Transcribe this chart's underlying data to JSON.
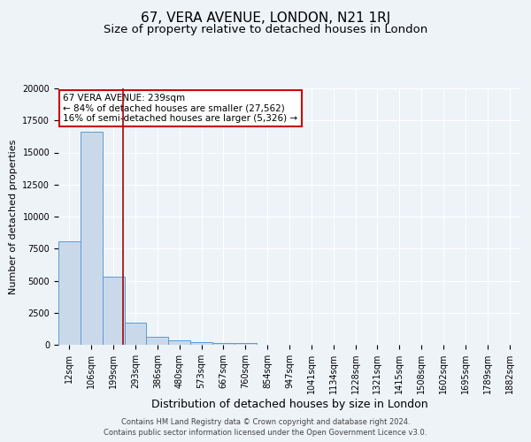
{
  "title": "67, VERA AVENUE, LONDON, N21 1RJ",
  "subtitle": "Size of property relative to detached houses in London",
  "xlabel": "Distribution of detached houses by size in London",
  "ylabel": "Number of detached properties",
  "footer_line1": "Contains HM Land Registry data © Crown copyright and database right 2024.",
  "footer_line2": "Contains public sector information licensed under the Open Government Licence v3.0.",
  "annotation_line1": "67 VERA AVENUE: 239sqm",
  "annotation_line2": "← 84% of detached houses are smaller (27,562)",
  "annotation_line3": "16% of semi-detached houses are larger (5,326) →",
  "bin_labels": [
    "12sqm",
    "106sqm",
    "199sqm",
    "293sqm",
    "386sqm",
    "480sqm",
    "573sqm",
    "667sqm",
    "760sqm",
    "854sqm",
    "947sqm",
    "1041sqm",
    "1134sqm",
    "1228sqm",
    "1321sqm",
    "1415sqm",
    "1508sqm",
    "1602sqm",
    "1695sqm",
    "1789sqm",
    "1882sqm"
  ],
  "bar_values": [
    8050,
    16600,
    5300,
    1750,
    650,
    350,
    230,
    150,
    130,
    0,
    0,
    0,
    0,
    0,
    0,
    0,
    0,
    0,
    0,
    0,
    0
  ],
  "bar_color": "#c9d9ea",
  "bar_edge_color": "#5b9bd5",
  "property_size": 239,
  "ylim": [
    0,
    20000
  ],
  "bg_color": "#eef3f8",
  "plot_bg_color": "#eef3f8",
  "grid_color": "#ffffff",
  "title_fontsize": 11,
  "subtitle_fontsize": 9.5,
  "tick_fontsize": 7,
  "ylabel_fontsize": 8,
  "xlabel_fontsize": 9,
  "annotation_fontsize": 7.5,
  "footer_fontsize": 6
}
